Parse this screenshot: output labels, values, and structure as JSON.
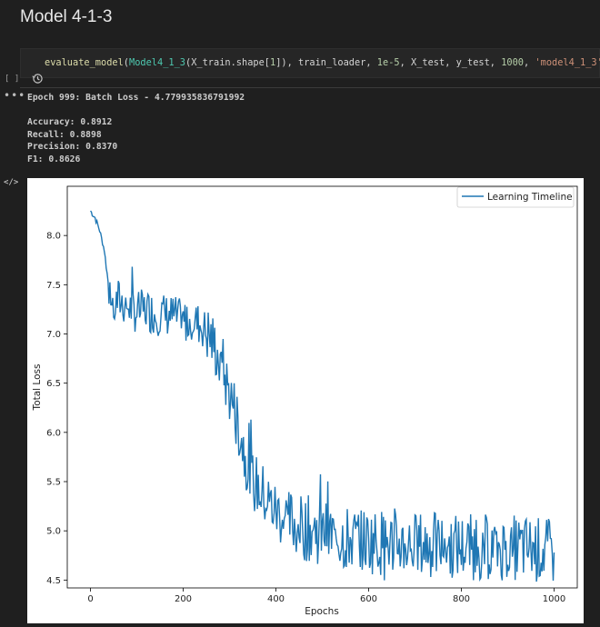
{
  "heading": "Model 4-1-3",
  "code": {
    "func": "evaluate_model",
    "open": "(",
    "cls": "Model4_1_3",
    "args_a": "(X_train.shape[",
    "idx": "1",
    "args_b": "]), train_loader, ",
    "lr": "1e-5",
    "args_c": ", X_test, y_test, ",
    "epochs": "1000",
    "comma": ", ",
    "name_str": "'model4_1_3'",
    "close": ")"
  },
  "exec_bracket": "[ ]",
  "output": {
    "epoch_line": "Epoch 999: Batch Loss - 4.779935836791992",
    "accuracy": "Accuracy: 0.8912",
    "recall": "Recall: 0.8898",
    "precision": "Precision: 0.8370",
    "f1": "F1: 0.8626"
  },
  "icons": {
    "history": "history-icon",
    "more": "more-icon",
    "code": "code-icon"
  },
  "colors": {
    "line": "#1f77b4",
    "background": "#1f1f1f"
  },
  "chart_data": {
    "type": "line",
    "xlabel": "Epochs",
    "ylabel": "Total Loss",
    "legend": "Learning Timeline",
    "legend_position": "top-right",
    "grid": false,
    "xlim": [
      -50,
      1050
    ],
    "ylim": [
      4.42,
      8.5
    ],
    "xticks": [
      0,
      200,
      400,
      600,
      800,
      1000
    ],
    "yticks": [
      4.5,
      5.0,
      5.5,
      6.0,
      6.5,
      7.0,
      7.5,
      8.0
    ],
    "ytick_labels": [
      "4.5",
      "5.0",
      "5.5",
      "6.0",
      "6.5",
      "7.0",
      "7.5",
      "8.0"
    ],
    "series": [
      {
        "name": "Learning Timeline",
        "x": [
          0,
          10,
          20,
          30,
          40,
          50,
          60,
          80,
          100,
          120,
          140,
          160,
          180,
          200,
          220,
          240,
          250,
          260,
          270,
          280,
          290,
          300,
          310,
          320,
          330,
          340,
          350,
          360,
          380,
          400,
          420,
          450,
          500,
          550,
          600,
          650,
          700,
          750,
          800,
          850,
          900,
          950,
          1000
        ],
        "y": [
          8.25,
          8.18,
          8.05,
          7.85,
          7.45,
          7.25,
          7.35,
          7.28,
          7.22,
          7.25,
          7.2,
          7.2,
          7.18,
          7.12,
          7.15,
          7.08,
          7.02,
          6.95,
          6.85,
          6.72,
          6.55,
          6.4,
          6.25,
          6.05,
          5.85,
          5.65,
          5.5,
          5.45,
          5.32,
          5.2,
          5.12,
          5.05,
          4.98,
          4.92,
          4.9,
          4.88,
          4.86,
          4.85,
          4.84,
          4.83,
          4.83,
          4.82,
          4.78
        ]
      }
    ]
  }
}
